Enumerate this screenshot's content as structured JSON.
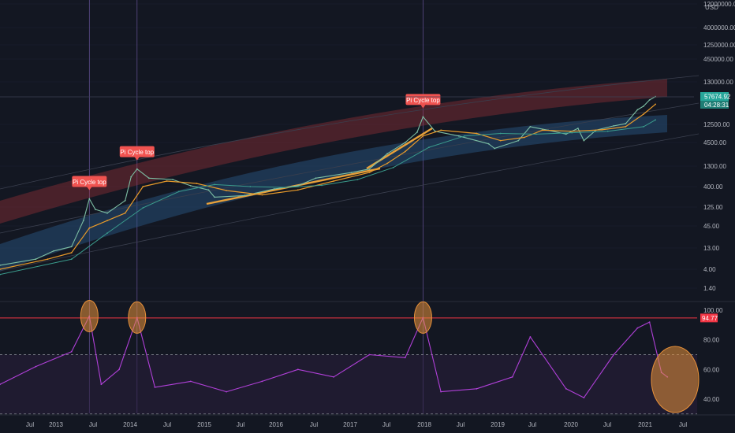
{
  "currency": "USD",
  "chart_data": [
    {
      "type": "line",
      "scale": "log",
      "ylim": [
        1,
        12000000
      ],
      "y_ticks": [
        "12000000.00",
        "4000000.00",
        "1250000.00",
        "450000.00",
        "130000.00",
        "12500.00",
        "4500.00",
        "1300.00",
        "400.00",
        "125.00",
        "45.00",
        "13.00",
        "4.00",
        "1.40"
      ],
      "x_ticks": [
        "Jul",
        "2013",
        "Jul",
        "2014",
        "Jul",
        "2015",
        "Jul",
        "2016",
        "Jul",
        "2017",
        "Jul",
        "2018",
        "Jul",
        "2019",
        "Jul",
        "2020",
        "Jul",
        "2021",
        "Jul"
      ],
      "last_price": "57674.92",
      "countdown": "04:28:31",
      "annotations": [
        {
          "text": "Pi Cycle top",
          "date": "2013-04"
        },
        {
          "text": "Pi Cycle top",
          "date": "2013-12"
        },
        {
          "text": "Pi Cycle top",
          "date": "2017-12"
        }
      ],
      "series": [
        {
          "values": [
            [
              "2012-01",
              5
            ],
            [
              "2012-07",
              7
            ],
            [
              "2012-10",
              11
            ],
            [
              "2013-01",
              14
            ],
            [
              "2013-03",
              60
            ],
            [
              "2013-04",
              200
            ],
            [
              "2013-05",
              110
            ],
            [
              "2013-07",
              90
            ],
            [
              "2013-10",
              180
            ],
            [
              "2013-11",
              700
            ],
            [
              "2013-12",
              1100
            ],
            [
              "2014-02",
              650
            ],
            [
              "2014-06",
              600
            ],
            [
              "2014-09",
              420
            ],
            [
              "2014-12",
              330
            ],
            [
              "2015-01",
              220
            ],
            [
              "2015-06",
              240
            ],
            [
              "2015-11",
              350
            ],
            [
              "2016-03",
              420
            ],
            [
              "2016-06",
              650
            ],
            [
              "2016-12",
              900
            ],
            [
              "2017-03",
              1100
            ],
            [
              "2017-06",
              2500
            ],
            [
              "2017-09",
              4500
            ],
            [
              "2017-11",
              8000
            ],
            [
              "2017-12",
              19000
            ],
            [
              "2018-02",
              8500
            ],
            [
              "2018-06",
              6500
            ],
            [
              "2018-11",
              4200
            ],
            [
              "2018-12",
              3300
            ],
            [
              "2019-04",
              5000
            ],
            [
              "2019-06",
              11000
            ],
            [
              "2019-09",
              9000
            ],
            [
              "2019-12",
              7200
            ],
            [
              "2020-02",
              10000
            ],
            [
              "2020-03",
              5000
            ],
            [
              "2020-05",
              9000
            ],
            [
              "2020-08",
              11500
            ],
            [
              "2020-10",
              13000
            ],
            [
              "2020-12",
              28000
            ],
            [
              "2021-01",
              34000
            ],
            [
              "2021-02",
              48000
            ],
            [
              "2021-03",
              57674.92
            ]
          ]
        },
        {
          "values": [
            [
              "2012-01",
              4
            ],
            [
              "2012-09",
              7
            ],
            [
              "2013-01",
              10
            ],
            [
              "2013-04",
              40
            ],
            [
              "2013-07",
              60
            ],
            [
              "2013-10",
              90
            ],
            [
              "2014-01",
              400
            ],
            [
              "2014-05",
              550
            ],
            [
              "2014-10",
              480
            ],
            [
              "2015-03",
              320
            ],
            [
              "2015-09",
              250
            ],
            [
              "2016-03",
              330
            ],
            [
              "2016-09",
              550
            ],
            [
              "2017-03",
              900
            ],
            [
              "2017-06",
              1500
            ],
            [
              "2017-09",
              2800
            ],
            [
              "2017-12",
              6500
            ],
            [
              "2018-03",
              9000
            ],
            [
              "2018-09",
              7500
            ],
            [
              "2019-01",
              5000
            ],
            [
              "2019-05",
              6000
            ],
            [
              "2019-08",
              9000
            ],
            [
              "2020-01",
              8500
            ],
            [
              "2020-06",
              9200
            ],
            [
              "2020-10",
              11000
            ],
            [
              "2021-01",
              22000
            ],
            [
              "2021-03",
              38000
            ]
          ]
        },
        {
          "values": [
            [
              "2012-01",
              3
            ],
            [
              "2013-01",
              7
            ],
            [
              "2013-07",
              30
            ],
            [
              "2014-01",
              120
            ],
            [
              "2014-07",
              300
            ],
            [
              "2015-01",
              450
            ],
            [
              "2015-07",
              400
            ],
            [
              "2016-01",
              380
            ],
            [
              "2016-07",
              430
            ],
            [
              "2017-01",
              600
            ],
            [
              "2017-07",
              1200
            ],
            [
              "2018-01",
              3500
            ],
            [
              "2018-07",
              6500
            ],
            [
              "2019-01",
              7500
            ],
            [
              "2019-07",
              7200
            ],
            [
              "2020-01",
              7800
            ],
            [
              "2020-07",
              8500
            ],
            [
              "2021-01",
              11000
            ],
            [
              "2021-03",
              16000
            ]
          ]
        }
      ]
    },
    {
      "type": "line",
      "ylim": [
        30,
        100
      ],
      "y_ticks": [
        "100.00",
        "80.00",
        "60.00",
        "40.00"
      ],
      "threshold_label": "94.77",
      "threshold": 94.77,
      "series": [
        {
          "values": [
            [
              "2012-01",
              50
            ],
            [
              "2012-07",
              62
            ],
            [
              "2013-01",
              72
            ],
            [
              "2013-04",
              96
            ],
            [
              "2013-06",
              50
            ],
            [
              "2013-09",
              60
            ],
            [
              "2013-12",
              95
            ],
            [
              "2014-03",
              48
            ],
            [
              "2014-09",
              52
            ],
            [
              "2015-03",
              45
            ],
            [
              "2015-09",
              52
            ],
            [
              "2016-03",
              60
            ],
            [
              "2016-09",
              55
            ],
            [
              "2017-03",
              70
            ],
            [
              "2017-09",
              68
            ],
            [
              "2017-12",
              95
            ],
            [
              "2018-03",
              45
            ],
            [
              "2018-09",
              47
            ],
            [
              "2019-03",
              55
            ],
            [
              "2019-06",
              82
            ],
            [
              "2019-12",
              47
            ],
            [
              "2020-03",
              41
            ],
            [
              "2020-08",
              70
            ],
            [
              "2020-12",
              88
            ],
            [
              "2021-02",
              92
            ],
            [
              "2021-04",
              58
            ],
            [
              "2021-05",
              55
            ]
          ]
        }
      ]
    }
  ]
}
